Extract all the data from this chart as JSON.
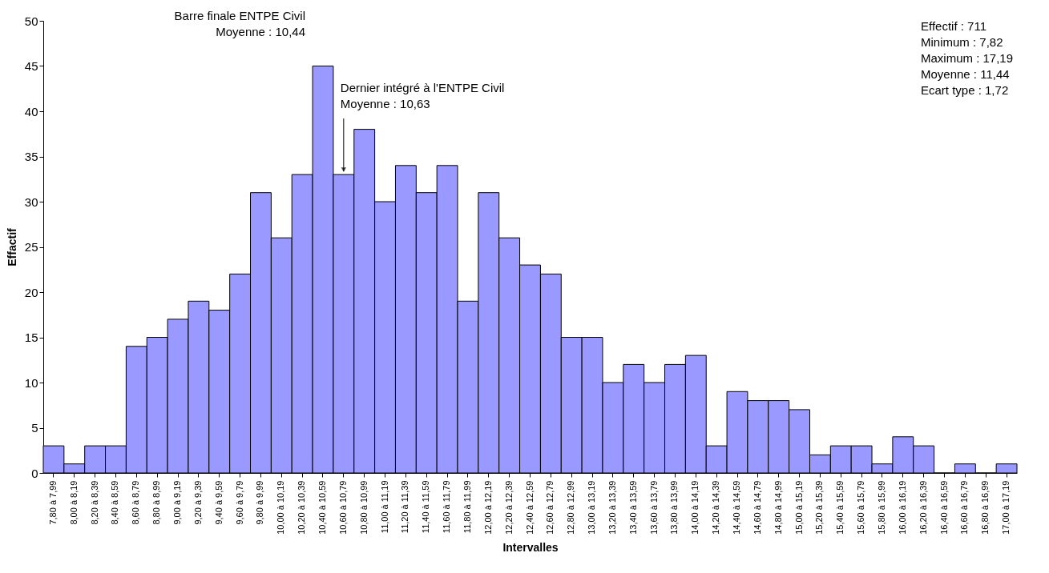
{
  "chart_data": {
    "type": "bar",
    "xlabel": "Intervalles",
    "ylabel": "Effactif",
    "categories": [
      "7,80 à 7,99",
      "8,00 à 8,19",
      "8,20 à 8,39",
      "8,40 à 8,59",
      "8,60 à 8,79",
      "8,80 à 8,99",
      "9,00 à 9,19",
      "9,20 à 9,39",
      "9,40 à 9,59",
      "9,60 à 9,79",
      "9,80 à 9,99",
      "10,00 à 10,19",
      "10,20 à 10,39",
      "10,40 à 10,59",
      "10,60 à 10,79",
      "10,80 à 10,99",
      "11,00 à 11,19",
      "11,20 à 11,39",
      "11,40 à 11,59",
      "11,60 à 11,79",
      "11,80 à 11,99",
      "12,00 à 12,19",
      "12,20 à 12,39",
      "12,40 à 12,59",
      "12,60 à 12,79",
      "12,80 à 12,99",
      "13,00 à 13,19",
      "13,20 à 13,39",
      "13,40 à 13,59",
      "13,60 à 13,79",
      "13,80 à 13,99",
      "14,00 à 14,19",
      "14,20 à 14,39",
      "14,40 à 14,59",
      "14,60 à 14,79",
      "14,80 à 14,99",
      "15,00 à 15,19",
      "15,20 à 15,39",
      "15,40 à 15,59",
      "15,60 à 15,79",
      "15,80 à 15,99",
      "16,00 à 16,19",
      "16,20 à 16,39",
      "16,40 à 16,59",
      "16,60 à 16,79",
      "16,80 à 16,99",
      "17,00 à 17,19"
    ],
    "values": [
      3,
      1,
      3,
      3,
      14,
      15,
      17,
      19,
      18,
      22,
      31,
      26,
      33,
      45,
      33,
      38,
      30,
      34,
      31,
      34,
      19,
      31,
      26,
      23,
      22,
      15,
      15,
      10,
      12,
      10,
      12,
      13,
      3,
      9,
      8,
      8,
      7,
      2,
      3,
      3,
      1,
      4,
      3,
      0,
      1,
      0,
      1
    ],
    "color": "#9999ff",
    "ylim": [
      0,
      50
    ],
    "yticks": [
      0,
      5,
      10,
      15,
      20,
      25,
      30,
      35,
      40,
      45,
      50
    ],
    "grid": false,
    "annotations": [
      {
        "text": "Barre finale ENTPE Civil\nMoyenne : 10,44",
        "x": "10,40 à 10,59",
        "y": 45
      },
      {
        "text": "Dernier intégré à l'ENTPE Civil\nMoyenne : 10,63",
        "x": "10,60 à 10,79",
        "y": 33
      },
      "Effectif : 711\nMinimum : 7,82\nMaximum : 17,19\nMoyenne : 11,44\nEcart type : 1,72"
    ]
  }
}
